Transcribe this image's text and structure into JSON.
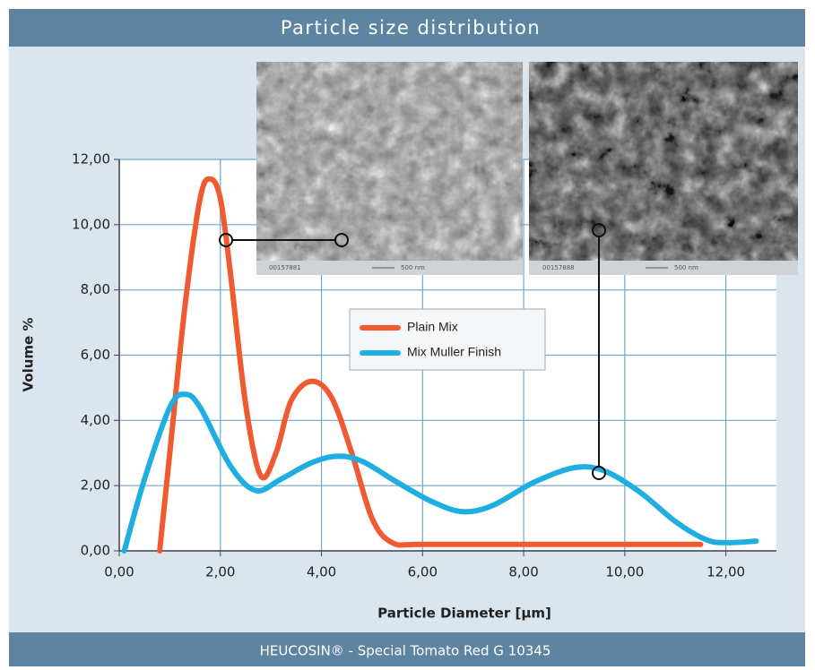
{
  "header": {
    "title": "Particle size distribution"
  },
  "footer": {
    "text": "HEUCOSIN® - Special Tomato Red G 10345"
  },
  "images": [
    {
      "id": "00157881",
      "scale": "500 nm"
    },
    {
      "id": "00157888",
      "scale": "500 nm"
    }
  ],
  "chart_data": {
    "type": "line",
    "xlabel": "Particle Diameter [µm]",
    "ylabel": "Volume %",
    "xlim": [
      0,
      13
    ],
    "ylim": [
      0,
      12
    ],
    "xticks": [
      {
        "value": 0,
        "label": "0,00"
      },
      {
        "value": 2,
        "label": "2,00"
      },
      {
        "value": 4,
        "label": "4,00"
      },
      {
        "value": 6,
        "label": "6,00"
      },
      {
        "value": 8,
        "label": "8,00"
      },
      {
        "value": 10,
        "label": "10,00"
      },
      {
        "value": 12,
        "label": "12,00"
      }
    ],
    "yticks": [
      {
        "value": 0,
        "label": "0,00"
      },
      {
        "value": 2,
        "label": "2,00"
      },
      {
        "value": 4,
        "label": "4,00"
      },
      {
        "value": 6,
        "label": "6,00"
      },
      {
        "value": 8,
        "label": "8,00"
      },
      {
        "value": 10,
        "label": "10,00"
      },
      {
        "value": 12,
        "label": "12,00"
      }
    ],
    "grid": true,
    "series": [
      {
        "name": "Plain Mix",
        "color": "#f05a30",
        "x": [
          0.8,
          1.0,
          1.3,
          1.6,
          1.8,
          2.0,
          2.2,
          2.5,
          2.8,
          3.1,
          3.4,
          3.8,
          4.2,
          4.6,
          5.0,
          5.4,
          6,
          8,
          10,
          11.5
        ],
        "values": [
          0,
          3,
          7.5,
          10.8,
          11.4,
          10.8,
          8.5,
          4.5,
          2.3,
          3,
          4.6,
          5.2,
          4.7,
          3,
          1.0,
          0.25,
          0.2,
          0.2,
          0.2,
          0.2
        ]
      },
      {
        "name": "Mix Muller Finish",
        "color": "#1eaee0",
        "x": [
          0.1,
          0.5,
          1.0,
          1.3,
          1.6,
          2.2,
          2.7,
          3.2,
          3.8,
          4.3,
          4.8,
          5.5,
          6.2,
          6.8,
          7.4,
          8.2,
          9.0,
          9.6,
          10.3,
          11.0,
          11.6,
          12.0,
          12.6
        ],
        "values": [
          0,
          2.2,
          4.4,
          4.8,
          4.4,
          2.6,
          1.85,
          2.2,
          2.7,
          2.9,
          2.75,
          2.1,
          1.5,
          1.2,
          1.4,
          2.1,
          2.55,
          2.45,
          1.8,
          0.9,
          0.35,
          0.25,
          0.3
        ]
      }
    ]
  }
}
